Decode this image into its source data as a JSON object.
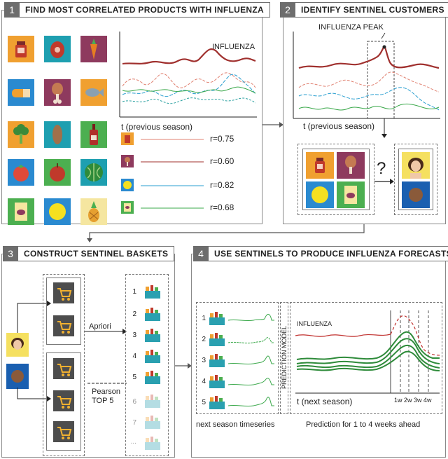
{
  "panel1": {
    "number": "1",
    "title": "FIND MOST CORRELATED PRODUCTS WITH INFLUENZA",
    "series_label": "INFLUENZA",
    "x_label": "t (previous season)",
    "correlations": [
      "r=0.75",
      "r=0.60",
      "r=0.82",
      "r=0.68"
    ],
    "colors": {
      "red": "#b03a3a",
      "blue": "#2a9fd0",
      "green": "#3aa84a",
      "salmon": "#e08070"
    }
  },
  "panel2": {
    "number": "2",
    "title": "IDENTIFY SENTINEL CUSTOMERS",
    "peak_label": "INFLUENZA PEAK",
    "x_label": "t (previous season)",
    "question": "?"
  },
  "panel3": {
    "number": "3",
    "title": "CONSTRUCT SENTINEL BASKETS",
    "apriori": "Apriori",
    "pearson": "Pearson\nTOP 5",
    "basket_numbers": [
      "1",
      "2",
      "3",
      "4",
      "5",
      "6",
      "7",
      "..."
    ]
  },
  "panel4": {
    "number": "4",
    "title": "USE SENTINELS TO PRODUCE INFLUENZA FORECASTS",
    "series_numbers": [
      "1",
      "2",
      "3",
      "4",
      "5"
    ],
    "prediction_model": "PREDICTION MODEL",
    "influenza_label": "INFLUENZA",
    "x_label": "t (next season)",
    "weeks": [
      "1w",
      "2w",
      "3w",
      "4w"
    ],
    "caption_left": "next season timeseries",
    "caption_right": "Prediction for 1 to 4 weeks ahead"
  }
}
